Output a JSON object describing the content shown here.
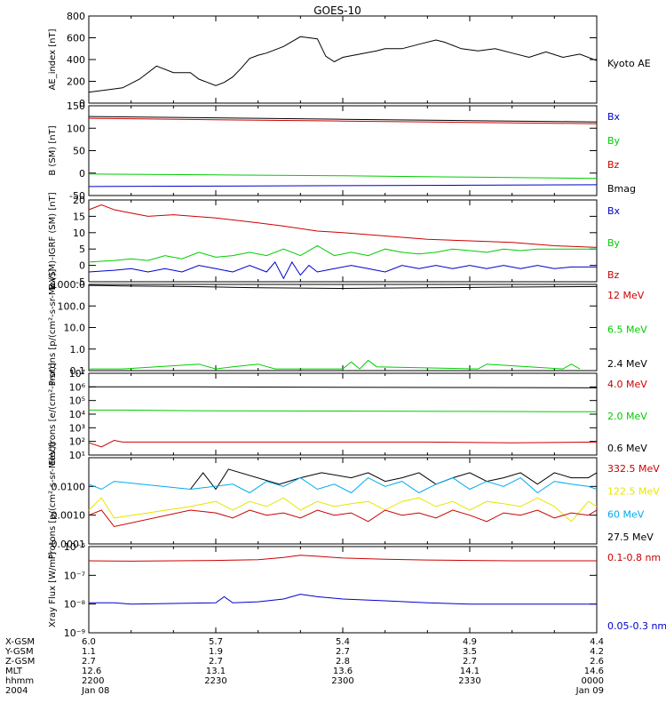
{
  "title": "GOES-10",
  "x_axis": {
    "row_labels": [
      "X-GSM",
      "Y-GSM",
      "Z-GSM",
      "MLT",
      "hhmm",
      "2004"
    ],
    "ticks": [
      {
        "values": [
          "6.0",
          "1.1",
          "2.7",
          "12.6",
          "2200",
          "Jan 08"
        ]
      },
      {
        "values": [
          "5.7",
          "1.9",
          "2.7",
          "13.1",
          "2230",
          ""
        ]
      },
      {
        "values": [
          "5.4",
          "2.7",
          "2.8",
          "13.6",
          "2300",
          ""
        ]
      },
      {
        "values": [
          "4.9",
          "3.5",
          "2.7",
          "14.1",
          "2330",
          ""
        ]
      },
      {
        "values": [
          "4.4",
          "4.2",
          "2.6",
          "14.6",
          "0000",
          "Jan 09"
        ]
      }
    ],
    "time_range_minutes": [
      0,
      120
    ]
  },
  "chart_data": [
    {
      "type": "line",
      "ylabel": "AE_index [nT]",
      "yscale": "linear",
      "ylim": [
        0,
        800
      ],
      "yticks": [
        "0",
        "200",
        "400",
        "600",
        "800"
      ],
      "legend": [
        {
          "label": "Kyoto AE",
          "color": "#000000"
        }
      ],
      "series": [
        {
          "name": "Kyoto AE",
          "color": "#000000",
          "x": [
            0,
            8,
            12,
            16,
            20,
            24,
            26,
            28,
            30,
            32,
            34,
            36,
            38,
            40,
            42,
            46,
            50,
            54,
            56,
            58,
            60,
            64,
            68,
            70,
            74,
            78,
            82,
            84,
            88,
            92,
            96,
            100,
            104,
            108,
            112,
            116,
            120
          ],
          "y": [
            100,
            140,
            220,
            340,
            280,
            280,
            220,
            190,
            160,
            190,
            240,
            320,
            410,
            440,
            460,
            520,
            610,
            590,
            430,
            380,
            420,
            450,
            480,
            500,
            500,
            540,
            580,
            560,
            500,
            480,
            500,
            460,
            420,
            470,
            420,
            450,
            390
          ]
        }
      ]
    },
    {
      "type": "line",
      "ylabel": "B (SM) [nT]",
      "yscale": "linear",
      "ylim": [
        -50,
        150
      ],
      "yticks": [
        "-50",
        "0",
        "50",
        "100",
        "150"
      ],
      "legend": [
        {
          "label": "Bx",
          "color": "#0000cc"
        },
        {
          "label": "By",
          "color": "#00cc00"
        },
        {
          "label": "Bz",
          "color": "#cc0000"
        },
        {
          "label": "Bmag",
          "color": "#000000"
        }
      ],
      "series": [
        {
          "name": "Bx",
          "color": "#0000cc",
          "x": [
            0,
            30,
            60,
            90,
            120
          ],
          "y": [
            -30,
            -29,
            -28,
            -27,
            -26
          ]
        },
        {
          "name": "By",
          "color": "#00cc00",
          "x": [
            0,
            30,
            60,
            90,
            120
          ],
          "y": [
            -2,
            -4,
            -6,
            -9,
            -12
          ]
        },
        {
          "name": "Bz",
          "color": "#cc0000",
          "x": [
            0,
            30,
            60,
            90,
            120
          ],
          "y": [
            122,
            119,
            116,
            113,
            110
          ]
        },
        {
          "name": "Bmag",
          "color": "#000000",
          "x": [
            0,
            30,
            60,
            90,
            120
          ],
          "y": [
            126,
            123,
            120,
            117,
            114
          ]
        }
      ]
    },
    {
      "type": "line",
      "ylabel": "B (SM)-IGRF (SM) [nT]",
      "yscale": "linear",
      "ylim": [
        -5,
        20
      ],
      "yticks": [
        "-5",
        "0",
        "5",
        "10",
        "15",
        "20"
      ],
      "legend": [
        {
          "label": "Bx",
          "color": "#0000cc"
        },
        {
          "label": "By",
          "color": "#00cc00"
        },
        {
          "label": "Bz",
          "color": "#cc0000"
        }
      ],
      "series": [
        {
          "name": "Bz",
          "color": "#cc0000",
          "x": [
            0,
            3,
            6,
            10,
            14,
            20,
            30,
            40,
            46,
            54,
            60,
            70,
            80,
            90,
            100,
            110,
            120
          ],
          "y": [
            17,
            18.5,
            17,
            16,
            15,
            15.5,
            14.5,
            13,
            12,
            10.5,
            10,
            9,
            8,
            7.5,
            7,
            6,
            5.5
          ]
        },
        {
          "name": "By",
          "color": "#00cc00",
          "x": [
            0,
            6,
            10,
            14,
            18,
            22,
            26,
            30,
            34,
            38,
            42,
            46,
            50,
            54,
            58,
            62,
            66,
            70,
            74,
            78,
            82,
            86,
            90,
            94,
            98,
            102,
            106,
            110,
            114,
            120
          ],
          "y": [
            1,
            1.5,
            2,
            1.5,
            3,
            2,
            4,
            2.5,
            3,
            4,
            3,
            5,
            3,
            6,
            3,
            4,
            3,
            5,
            4,
            3.5,
            4,
            5,
            4.5,
            4,
            5,
            4.5,
            5,
            5,
            5,
            5
          ]
        },
        {
          "name": "Bx",
          "color": "#0000cc",
          "x": [
            0,
            6,
            10,
            14,
            18,
            22,
            26,
            30,
            34,
            38,
            42,
            44,
            46,
            48,
            50,
            52,
            54,
            58,
            62,
            66,
            70,
            74,
            78,
            82,
            86,
            90,
            94,
            98,
            102,
            106,
            110,
            114,
            120
          ],
          "y": [
            -2,
            -1.5,
            -1,
            -2,
            -1,
            -2,
            0,
            -1,
            -2,
            0,
            -2,
            1,
            -4,
            1,
            -3,
            0,
            -2,
            -1,
            0,
            -1,
            -2,
            0,
            -1,
            0,
            -1,
            0,
            -1,
            0,
            -1,
            0,
            -1,
            -0.5,
            -0.5
          ]
        }
      ]
    },
    {
      "type": "line",
      "ylabel": "Protons [p/(cm²-s-sr-MeV)]",
      "yscale": "log",
      "ylim": [
        0.1,
        1000
      ],
      "yticks": [
        "0.1",
        "1.0",
        "10.0",
        "100.0",
        "1000.0"
      ],
      "legend": [
        {
          "label": "12 MeV",
          "color": "#cc0000"
        },
        {
          "label": "6.5 MeV",
          "color": "#00cc00"
        },
        {
          "label": "2.4 MeV",
          "color": "#000000"
        }
      ],
      "series": [
        {
          "name": "2.4 MeV",
          "color": "#000000",
          "x": [
            0,
            8,
            24,
            40,
            60,
            80,
            100,
            120
          ],
          "y": [
            900,
            850,
            800,
            700,
            650,
            700,
            750,
            800
          ]
        },
        {
          "name": "6.5 MeV",
          "color": "#00cc00",
          "x": [
            0,
            8,
            26,
            30,
            34,
            40,
            44,
            60,
            62,
            64,
            66,
            68,
            92,
            94,
            112,
            114,
            116
          ],
          "y": [
            0.12,
            0.12,
            0.2,
            0.12,
            0.15,
            0.2,
            0.12,
            0.12,
            0.25,
            0.12,
            0.3,
            0.15,
            0.12,
            0.2,
            0.12,
            0.2,
            0.12
          ]
        }
      ]
    },
    {
      "type": "line",
      "ylabel": "Electrons [e/(cm²-s-sr)]",
      "yscale": "log",
      "ylim": [
        10,
        10000000
      ],
      "yticks": [
        "10¹",
        "10²",
        "10³",
        "10⁴",
        "10⁵",
        "10⁶",
        "10⁷"
      ],
      "legend": [
        {
          "label": "4.0 MeV",
          "color": "#cc0000"
        },
        {
          "label": "2.0 MeV",
          "color": "#00cc00"
        },
        {
          "label": "0.6 MeV",
          "color": "#000000"
        }
      ],
      "series": [
        {
          "name": "0.6 MeV",
          "color": "#000000",
          "x": [
            0,
            8,
            24,
            60,
            90,
            120
          ],
          "y": [
            1000000,
            1000000,
            1000000,
            950000,
            900000,
            850000
          ]
        },
        {
          "name": "2.0 MeV",
          "color": "#00cc00",
          "x": [
            0,
            8,
            24,
            60,
            90,
            120
          ],
          "y": [
            20000,
            20000,
            18000,
            17000,
            16000,
            15000
          ]
        },
        {
          "name": "4.0 MeV",
          "color": "#cc0000",
          "x": [
            0,
            3,
            6,
            8,
            24,
            40,
            60,
            80,
            100,
            120
          ],
          "y": [
            80,
            40,
            120,
            90,
            90,
            90,
            90,
            90,
            80,
            90
          ]
        }
      ]
    },
    {
      "type": "line",
      "ylabel": "Protons [p/(cm²-s-sr-MeV)]",
      "yscale": "log",
      "ylim": [
        0.0001,
        0.1
      ],
      "yticks": [
        "0.0001",
        "0.0010",
        "0.0100"
      ],
      "legend": [
        {
          "label": "332.5 MeV",
          "color": "#cc0000"
        },
        {
          "label": "122.5 MeV",
          "color": "#e6e600"
        },
        {
          "label": "60 MeV",
          "color": "#00aaee"
        },
        {
          "label": "27.5 MeV",
          "color": "#000000"
        }
      ],
      "series": [
        {
          "name": "27.5 MeV",
          "color": "#000000",
          "x": [
            24,
            27,
            30,
            33,
            45,
            50,
            55,
            62,
            66,
            70,
            74,
            78,
            82,
            86,
            90,
            94,
            98,
            102,
            106,
            110,
            114,
            118,
            120
          ],
          "y": [
            0.008,
            0.03,
            0.008,
            0.04,
            0.012,
            0.02,
            0.03,
            0.02,
            0.03,
            0.015,
            0.02,
            0.03,
            0.012,
            0.02,
            0.03,
            0.015,
            0.02,
            0.03,
            0.012,
            0.03,
            0.02,
            0.02,
            0.03
          ]
        },
        {
          "name": "60 MeV",
          "color": "#00aaee",
          "x": [
            0,
            3,
            6,
            24,
            34,
            38,
            42,
            46,
            50,
            54,
            58,
            62,
            66,
            70,
            74,
            78,
            82,
            86,
            90,
            94,
            98,
            102,
            106,
            110,
            114,
            118,
            120
          ],
          "y": [
            0.012,
            0.008,
            0.015,
            0.008,
            0.012,
            0.006,
            0.015,
            0.01,
            0.02,
            0.008,
            0.012,
            0.006,
            0.02,
            0.01,
            0.015,
            0.006,
            0.012,
            0.02,
            0.008,
            0.015,
            0.01,
            0.02,
            0.006,
            0.015,
            0.012,
            0.01,
            0.008
          ]
        },
        {
          "name": "122.5 MeV",
          "color": "#e6e600",
          "x": [
            0,
            3,
            6,
            24,
            30,
            34,
            38,
            42,
            46,
            50,
            54,
            58,
            62,
            66,
            70,
            74,
            78,
            82,
            86,
            90,
            94,
            98,
            102,
            106,
            110,
            114,
            118,
            120
          ],
          "y": [
            0.0015,
            0.004,
            0.0008,
            0.002,
            0.003,
            0.0015,
            0.003,
            0.002,
            0.004,
            0.0015,
            0.003,
            0.002,
            0.0025,
            0.003,
            0.0015,
            0.003,
            0.004,
            0.002,
            0.003,
            0.0015,
            0.003,
            0.0025,
            0.002,
            0.004,
            0.002,
            0.0006,
            0.003,
            0.002
          ]
        },
        {
          "name": "332.5 MeV",
          "color": "#cc0000",
          "x": [
            0,
            3,
            6,
            24,
            30,
            34,
            38,
            42,
            46,
            50,
            54,
            58,
            62,
            66,
            70,
            74,
            78,
            82,
            86,
            90,
            94,
            98,
            102,
            106,
            110,
            114,
            118,
            120
          ],
          "y": [
            0.001,
            0.0015,
            0.0004,
            0.0015,
            0.0012,
            0.0008,
            0.0015,
            0.001,
            0.0012,
            0.0008,
            0.0015,
            0.001,
            0.0012,
            0.0006,
            0.0015,
            0.001,
            0.0012,
            0.0008,
            0.0015,
            0.001,
            0.0006,
            0.0012,
            0.001,
            0.0015,
            0.0008,
            0.0012,
            0.001,
            0.0015
          ]
        }
      ]
    },
    {
      "type": "line",
      "ylabel": "Xray Flux [W/m²]",
      "yscale": "log",
      "ylim": [
        1e-09,
        1e-06
      ],
      "yticks": [
        "10⁻⁹",
        "10⁻⁸",
        "10⁻⁷",
        "10⁻⁶"
      ],
      "legend": [
        {
          "label": "0.1-0.8 nm",
          "color": "#cc0000"
        },
        {
          "label": "0.05-0.3 nm",
          "color": "#0000cc"
        }
      ],
      "series": [
        {
          "name": "0.1-0.8 nm",
          "color": "#cc0000",
          "x": [
            0,
            10,
            20,
            30,
            40,
            46,
            50,
            54,
            60,
            70,
            80,
            90,
            100,
            110,
            120
          ],
          "y": [
            3.2e-07,
            3.1e-07,
            3.2e-07,
            3.3e-07,
            3.5e-07,
            4.2e-07,
            5e-07,
            4.6e-07,
            4e-07,
            3.6e-07,
            3.4e-07,
            3.3e-07,
            3.2e-07,
            3.2e-07,
            3.2e-07
          ]
        },
        {
          "name": "0.05-0.3 nm",
          "color": "#0000cc",
          "x": [
            0,
            6,
            10,
            20,
            30,
            32,
            34,
            40,
            46,
            50,
            54,
            60,
            70,
            80,
            90,
            100,
            110,
            120
          ],
          "y": [
            1.1e-08,
            1.1e-08,
            1e-08,
            1.05e-08,
            1.1e-08,
            1.8e-08,
            1.1e-08,
            1.2e-08,
            1.5e-08,
            2.2e-08,
            1.8e-08,
            1.5e-08,
            1.3e-08,
            1.1e-08,
            1e-08,
            1e-08,
            1e-08,
            1e-08
          ]
        }
      ]
    }
  ]
}
